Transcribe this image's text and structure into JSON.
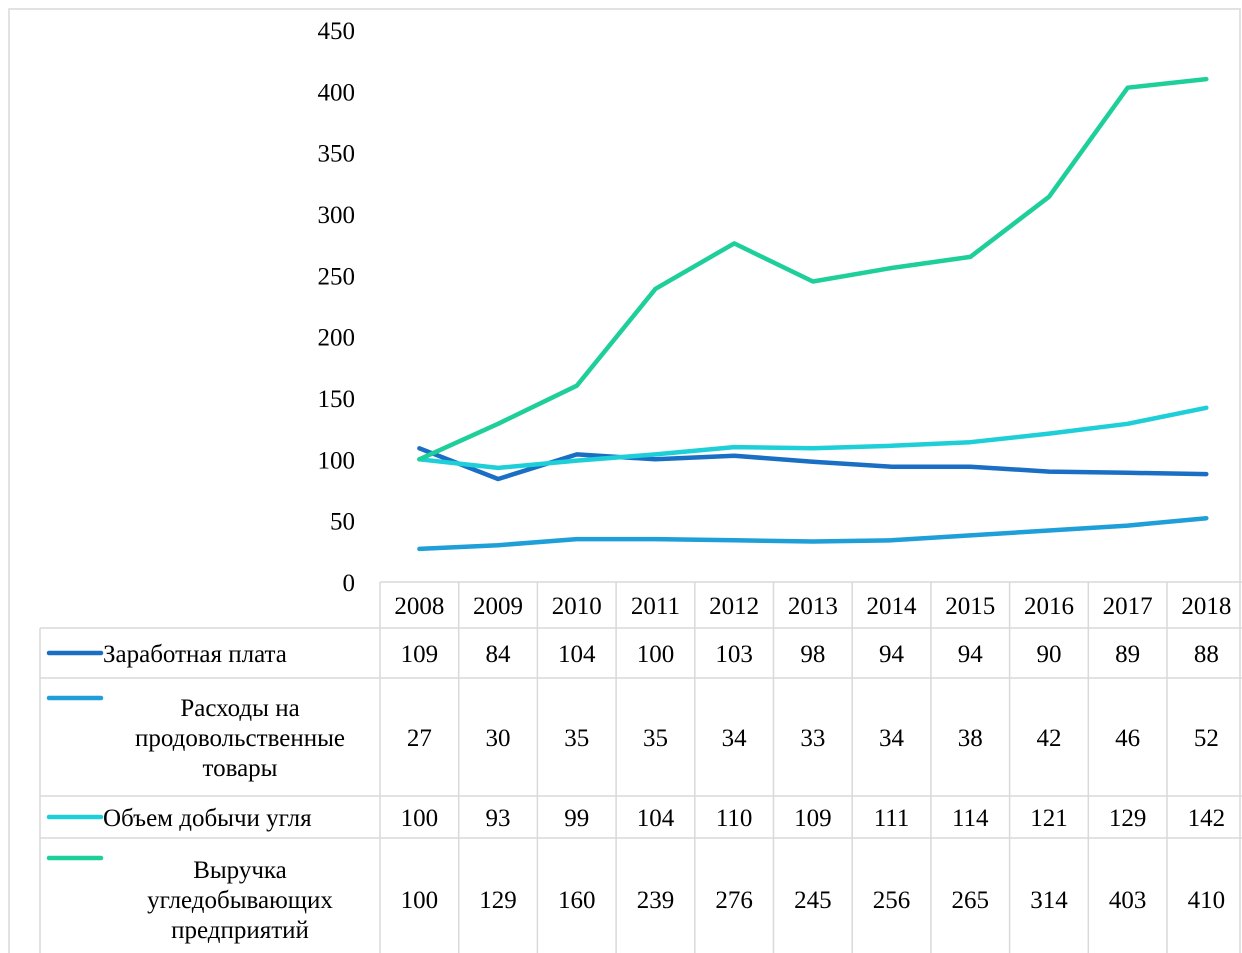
{
  "chart_data": {
    "type": "line",
    "categories": [
      "2008",
      "2009",
      "2010",
      "2011",
      "2012",
      "2013",
      "2014",
      "2015",
      "2016",
      "2017",
      "2018"
    ],
    "ylim": [
      0,
      450
    ],
    "yticks": [
      0,
      50,
      100,
      150,
      200,
      250,
      300,
      350,
      400,
      450
    ],
    "grid": false,
    "legend": "data-table",
    "series": [
      {
        "name": "Заработная плата",
        "label_lines": [
          "Заработная плата"
        ],
        "color": "#1a6fc4",
        "values": [
          109,
          84,
          104,
          100,
          103,
          98,
          94,
          94,
          90,
          89,
          88
        ]
      },
      {
        "name": "Расходы на продовольственные товары",
        "label_lines": [
          "Расходы на",
          "продовольственные",
          "товары"
        ],
        "color": "#1f9fd8",
        "values": [
          27,
          30,
          35,
          35,
          34,
          33,
          34,
          38,
          42,
          46,
          52
        ]
      },
      {
        "name": "Объем добычи угля",
        "label_lines": [
          "Объем добычи угля"
        ],
        "color": "#1fcfd8",
        "values": [
          100,
          93,
          99,
          104,
          110,
          109,
          111,
          114,
          121,
          129,
          142
        ]
      },
      {
        "name": "Выручка угледобывающих предприятий",
        "label_lines": [
          "Выручка",
          "угледобывающих",
          "предприятий"
        ],
        "color": "#1ecf9a",
        "values": [
          100,
          129,
          160,
          239,
          276,
          245,
          256,
          265,
          314,
          403,
          410
        ]
      }
    ]
  }
}
